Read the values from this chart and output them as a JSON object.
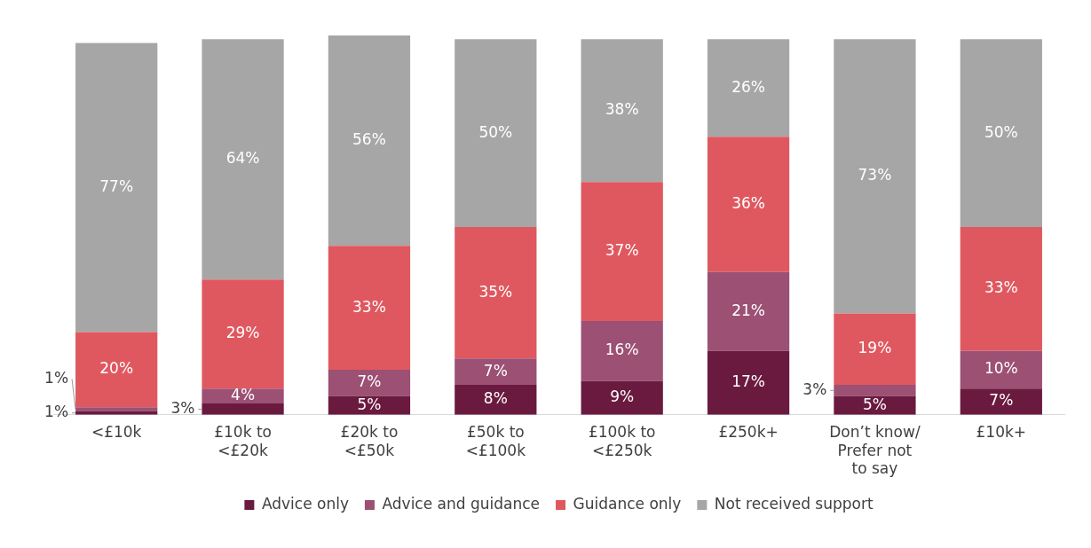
{
  "chart_data": {
    "type": "bar",
    "stacked": true,
    "legend": "bottom",
    "grid": false,
    "categories": [
      "<£10k",
      "£10k to <£20k",
      "£20k to <£50k",
      "£50k to <£100k",
      "£100k to <£250k",
      "£250k+",
      "Don’t know/ Prefer not to say",
      "£10k+"
    ],
    "series": [
      {
        "name": "Advice only",
        "color": "#6b1a3f",
        "values": [
          1,
          3,
          5,
          8,
          9,
          17,
          5,
          7
        ],
        "value_labels": [
          "1%",
          "3%",
          "5%",
          "8%",
          "9%",
          "17%",
          "5%",
          "7%"
        ]
      },
      {
        "name": "Advice and guidance",
        "color": "#9c5073",
        "values": [
          1,
          4,
          7,
          7,
          16,
          21,
          3,
          10
        ],
        "value_labels": [
          "1%",
          "4%",
          "7%",
          "7%",
          "16%",
          "21%",
          "3%",
          "10%"
        ]
      },
      {
        "name": "Guidance only",
        "color": "#e0585f",
        "values": [
          20,
          29,
          33,
          35,
          37,
          36,
          19,
          33
        ],
        "value_labels": [
          "20%",
          "29%",
          "33%",
          "35%",
          "37%",
          "36%",
          "19%",
          "33%"
        ]
      },
      {
        "name": "Not received support",
        "color": "#a6a6a6",
        "values": [
          77,
          64,
          56,
          50,
          38,
          26,
          73,
          50
        ],
        "value_labels": [
          "77%",
          "64%",
          "56%",
          "50%",
          "38%",
          "26%",
          "73%",
          "50%"
        ]
      }
    ]
  }
}
